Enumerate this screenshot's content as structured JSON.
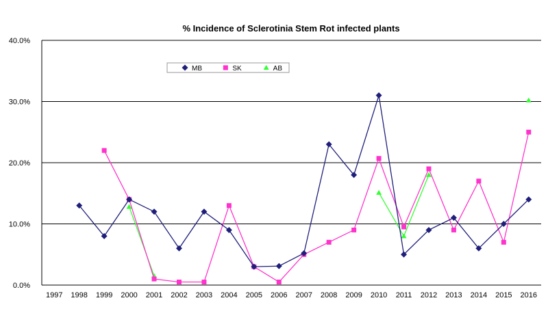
{
  "chart_data": {
    "type": "line",
    "title": "% Incidence of Sclerotinia Stem Rot infected plants",
    "xlabel": "",
    "ylabel": "",
    "categories": [
      "1997",
      "1998",
      "1999",
      "2000",
      "2001",
      "2002",
      "2003",
      "2004",
      "2005",
      "2006",
      "2007",
      "2008",
      "2009",
      "2010",
      "2011",
      "2012",
      "2013",
      "2014",
      "2015",
      "2016"
    ],
    "yticks": [
      "0.0%",
      "10.0%",
      "20.0%",
      "30.0%",
      "40.0%"
    ],
    "ylim": [
      0,
      40
    ],
    "grid": "horizontal",
    "legend_position": "top-left-inside",
    "series": [
      {
        "name": "MB",
        "color": "#1f1f7a",
        "marker": "diamond",
        "values": [
          null,
          13,
          8,
          14,
          12,
          6,
          12,
          9,
          3,
          3.1,
          5.2,
          23,
          18,
          31,
          5,
          9,
          11,
          6,
          10,
          14
        ]
      },
      {
        "name": "SK",
        "color": "#ff33cc",
        "marker": "square",
        "values": [
          null,
          null,
          22,
          14,
          1,
          0.5,
          0.5,
          13,
          3,
          0.5,
          5,
          7,
          9,
          20.7,
          9.5,
          19,
          9,
          17,
          7,
          25
        ]
      },
      {
        "name": "AB",
        "color": "#33ff33",
        "marker": "triangle",
        "values": [
          null,
          null,
          null,
          12.8,
          1.5,
          null,
          null,
          null,
          null,
          null,
          null,
          null,
          null,
          15.1,
          8,
          18,
          null,
          null,
          null,
          30.2
        ]
      }
    ]
  }
}
